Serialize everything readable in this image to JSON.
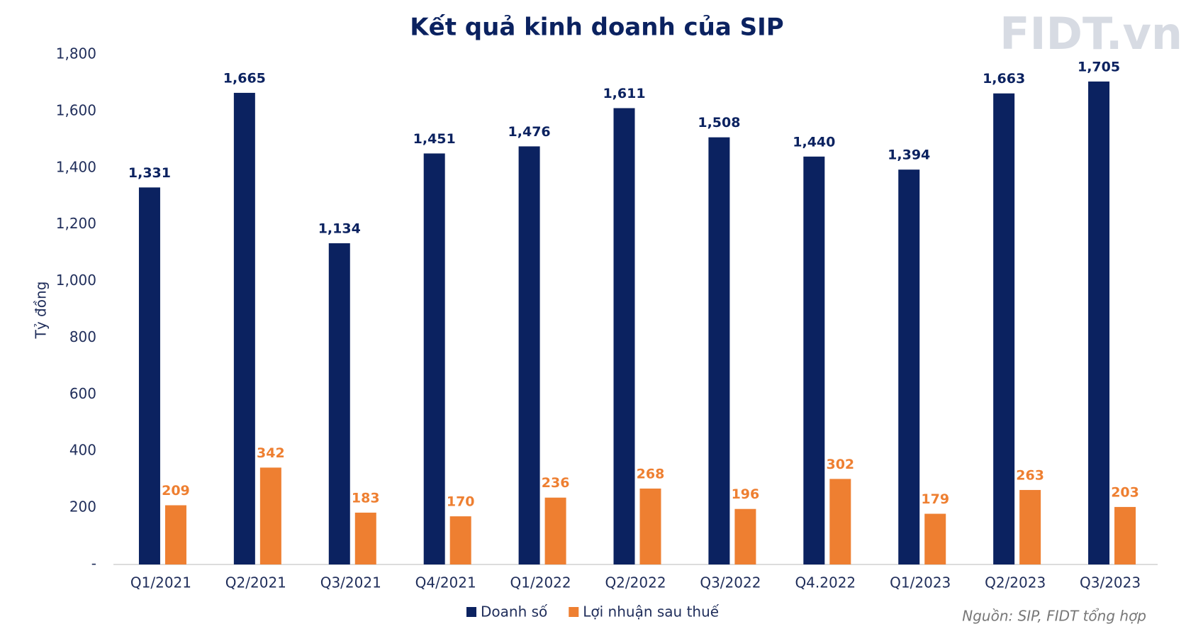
{
  "chart_data": {
    "type": "bar",
    "title": "Kết quả kinh doanh của SIP",
    "y_axis_label": "Tỷ đồng",
    "logo": "FIDT.vn",
    "source": "Nguồn: SIP, FIDT tổng hợp",
    "categories": [
      "Q1/2021",
      "Q2/2021",
      "Q3/2021",
      "Q4/2021",
      "Q1/2022",
      "Q2/2022",
      "Q3/2022",
      "Q4.2022",
      "Q1/2023",
      "Q2/2023",
      "Q3/2023"
    ],
    "series": [
      {
        "name": "Doanh số",
        "color": "#0b2260",
        "values": [
          1331,
          1665,
          1134,
          1451,
          1476,
          1611,
          1508,
          1440,
          1394,
          1663,
          1705
        ],
        "value_labels": [
          "1,331",
          "1,665",
          "1,134",
          "1,451",
          "1,476",
          "1,611",
          "1,508",
          "1,440",
          "1,394",
          "1,663",
          "1,705"
        ]
      },
      {
        "name": "Lợi nhuận sau thuế",
        "color": "#ee7f31",
        "values": [
          209,
          342,
          183,
          170,
          236,
          268,
          196,
          302,
          179,
          263,
          203
        ]
      }
    ],
    "ylim": [
      0,
      1800
    ],
    "yticks": [
      {
        "value": 0,
        "label": "-"
      },
      200,
      400,
      600,
      800,
      {
        "value": 1000,
        "label": "1,000"
      },
      {
        "value": 1200,
        "label": "1,200"
      },
      {
        "value": 1400,
        "label": "1,400"
      },
      {
        "value": 1600,
        "label": "1,600"
      },
      {
        "value": 1800,
        "label": "1,800"
      }
    ],
    "grid": false
  }
}
